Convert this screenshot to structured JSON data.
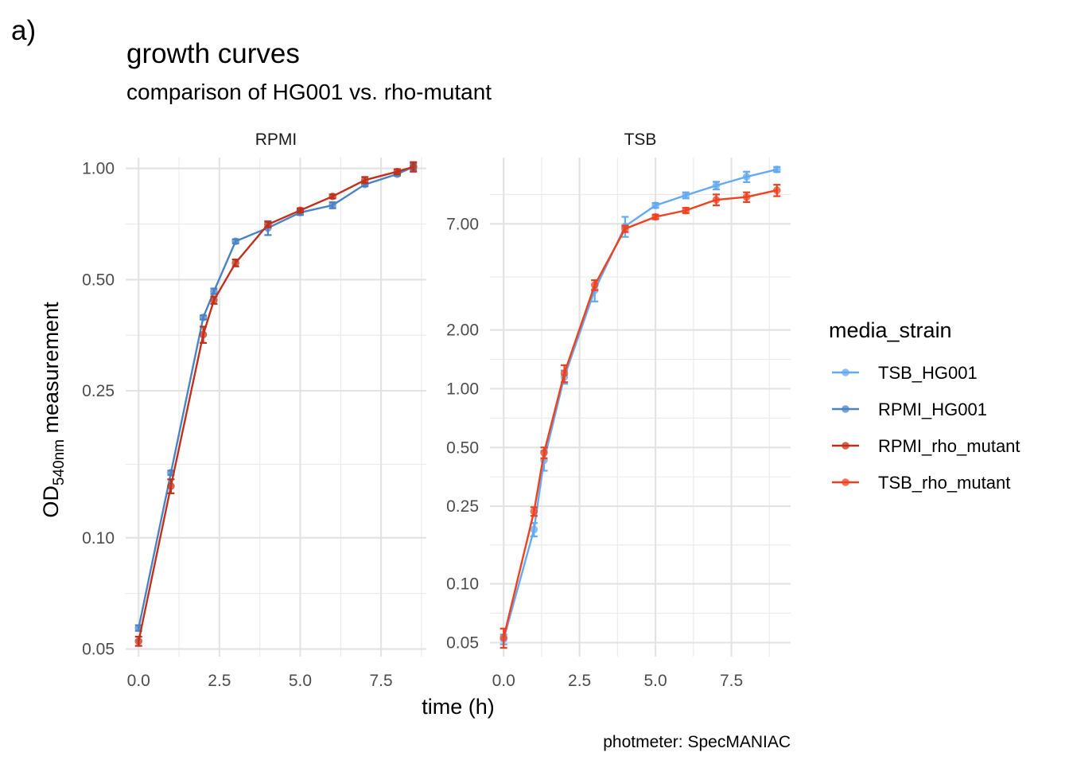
{
  "tag": "a)",
  "title": "growth curves",
  "subtitle": "comparison of HG001 vs. rho-mutant",
  "caption": "photmeter: SpecMANIAC",
  "colors": {
    "TSB_HG001": "#63aaf0",
    "RPMI_HG001": "#4a83c4",
    "RPMI_rho_mutant": "#c0311c",
    "TSB_rho_mutant": "#f0411f"
  },
  "chart_data": {
    "type": "line",
    "scale_y": "log",
    "xlabel": "time (h)",
    "ylabel": {
      "base": "OD",
      "subscript": "540nm",
      "rest": " measurement"
    },
    "legend": {
      "title": "media_strain",
      "position": "right",
      "entries": [
        "TSB_HG001",
        "RPMI_HG001",
        "RPMI_rho_mutant",
        "TSB_rho_mutant"
      ]
    },
    "grid": true,
    "panels": [
      {
        "strip": "RPMI",
        "xlim": [
          -0.4,
          8.9
        ],
        "ylim": [
          0.0477,
          1.07
        ],
        "x_ticks": [
          0.0,
          2.5,
          5.0,
          7.5
        ],
        "x_tick_labels": [
          "0.0",
          "2.5",
          "5.0",
          "7.5"
        ],
        "y_ticks": [
          0.05,
          0.1,
          0.25,
          0.5,
          1.0
        ],
        "y_tick_labels": [
          "0.05",
          "0.10",
          "0.25",
          "0.50",
          "1.00"
        ],
        "series": [
          {
            "name": "RPMI_HG001",
            "points": [
              {
                "x": 0,
                "y": 0.057,
                "err": 0.001
              },
              {
                "x": 1,
                "y": 0.15,
                "err": 0.002
              },
              {
                "x": 2,
                "y": 0.395,
                "err": 0.005
              },
              {
                "x": 2.33,
                "y": 0.465,
                "err": 0.008
              },
              {
                "x": 3,
                "y": 0.635,
                "err": 0.008
              },
              {
                "x": 4,
                "y": 0.69,
                "err": 0.03
              },
              {
                "x": 5,
                "y": 0.76,
                "err": 0.012
              },
              {
                "x": 6,
                "y": 0.795,
                "err": 0.015
              },
              {
                "x": 7,
                "y": 0.905,
                "err": 0.01
              },
              {
                "x": 8,
                "y": 0.965,
                "err": 0.01
              },
              {
                "x": 8.5,
                "y": 1.01,
                "err": 0.02
              }
            ]
          },
          {
            "name": "RPMI_rho_mutant",
            "points": [
              {
                "x": 0,
                "y": 0.0525,
                "err": 0.0015
              },
              {
                "x": 1,
                "y": 0.138,
                "err": 0.006
              },
              {
                "x": 2,
                "y": 0.355,
                "err": 0.018
              },
              {
                "x": 2.33,
                "y": 0.44,
                "err": 0.01
              },
              {
                "x": 3,
                "y": 0.555,
                "err": 0.012
              },
              {
                "x": 4,
                "y": 0.705,
                "err": 0.012
              },
              {
                "x": 5,
                "y": 0.77,
                "err": 0.01
              },
              {
                "x": 6,
                "y": 0.84,
                "err": 0.01
              },
              {
                "x": 7,
                "y": 0.93,
                "err": 0.018
              },
              {
                "x": 8,
                "y": 0.98,
                "err": 0.015
              },
              {
                "x": 8.5,
                "y": 1.01,
                "err": 0.03
              }
            ]
          }
        ]
      },
      {
        "strip": "TSB",
        "xlim": [
          -0.45,
          9.45
        ],
        "ylim": [
          0.0424,
          15.3
        ],
        "x_ticks": [
          0.0,
          2.5,
          5.0,
          7.5
        ],
        "x_tick_labels": [
          "0.0",
          "2.5",
          "5.0",
          "7.5"
        ],
        "y_ticks": [
          0.05,
          0.1,
          0.25,
          0.5,
          1.0,
          2.0,
          7.0
        ],
        "y_tick_labels": [
          "0.05",
          "0.10",
          "0.25",
          "0.50",
          "1.00",
          "2.00",
          "7.00"
        ],
        "series": [
          {
            "name": "TSB_HG001",
            "points": [
              {
                "x": 0,
                "y": 0.052,
                "err": 0.003
              },
              {
                "x": 1,
                "y": 0.19,
                "err": 0.015
              },
              {
                "x": 1.33,
                "y": 0.43,
                "err": 0.05
              },
              {
                "x": 2,
                "y": 1.15,
                "err": 0.09
              },
              {
                "x": 3,
                "y": 3.2,
                "err": 0.4
              },
              {
                "x": 4,
                "y": 6.8,
                "err": 0.8
              },
              {
                "x": 5,
                "y": 8.7,
                "err": 0.25
              },
              {
                "x": 6,
                "y": 9.8,
                "err": 0.35
              },
              {
                "x": 7,
                "y": 11.0,
                "err": 0.5
              },
              {
                "x": 8,
                "y": 12.2,
                "err": 0.75
              },
              {
                "x": 9,
                "y": 13.3,
                "err": 0.4
              }
            ]
          },
          {
            "name": "TSB_rho_mutant",
            "points": [
              {
                "x": 0,
                "y": 0.053,
                "err": 0.006
              },
              {
                "x": 1,
                "y": 0.235,
                "err": 0.012
              },
              {
                "x": 1.33,
                "y": 0.47,
                "err": 0.03
              },
              {
                "x": 2,
                "y": 1.2,
                "err": 0.12
              },
              {
                "x": 3,
                "y": 3.4,
                "err": 0.2
              },
              {
                "x": 4,
                "y": 6.6,
                "err": 0.25
              },
              {
                "x": 5,
                "y": 7.6,
                "err": 0.2
              },
              {
                "x": 6,
                "y": 8.2,
                "err": 0.25
              },
              {
                "x": 7,
                "y": 9.3,
                "err": 0.6
              },
              {
                "x": 8,
                "y": 9.6,
                "err": 0.55
              },
              {
                "x": 9,
                "y": 10.4,
                "err": 0.7
              }
            ]
          }
        ]
      }
    ]
  }
}
